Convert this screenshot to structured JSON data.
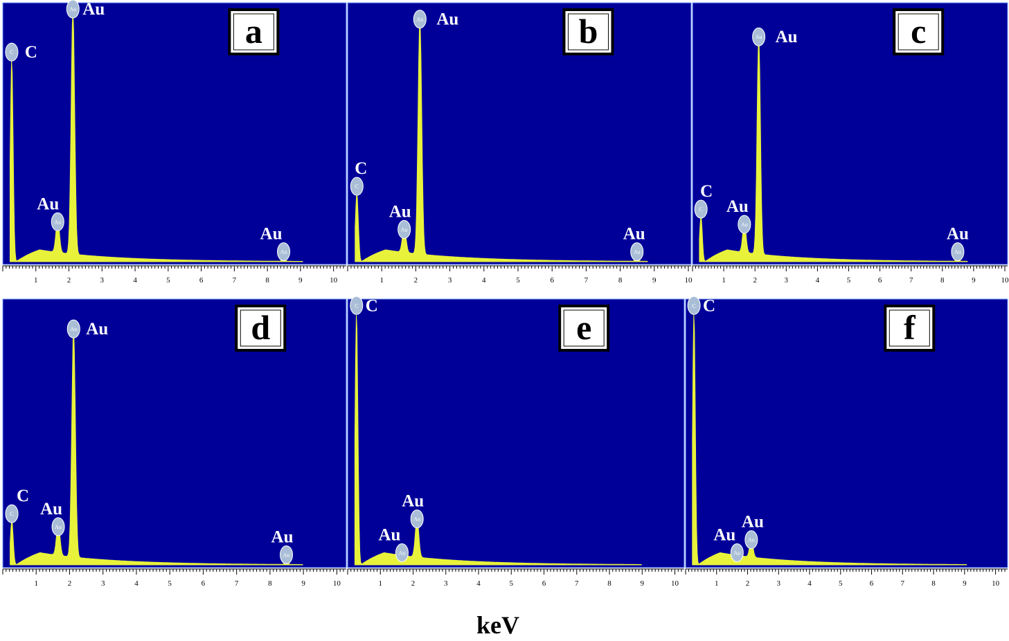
{
  "figure": {
    "xlabel": "keV",
    "colors": {
      "plot_bg": "#000099",
      "spectrum": "#e8f23a",
      "marker": "#a9bed6",
      "label_box": "#ffffff"
    }
  },
  "chart_data": [
    {
      "type": "area",
      "panel": "a",
      "xlim": [
        0,
        10.3
      ],
      "x_ticks": [
        1,
        2,
        3,
        4,
        5,
        6,
        7,
        8,
        9,
        10
      ],
      "peaks": [
        {
          "element": "C",
          "x": 0.27,
          "height": 0.8,
          "label": "C"
        },
        {
          "element": "Au",
          "x": 1.66,
          "height": 0.13,
          "label": "Au"
        },
        {
          "element": "Au",
          "x": 2.12,
          "height": 0.97,
          "label": "Au"
        },
        {
          "element": "Au",
          "x": 8.49,
          "height": 0.012,
          "label": "Au"
        }
      ]
    },
    {
      "type": "area",
      "panel": "b",
      "xlim": [
        0,
        10
      ],
      "x_ticks": [
        1,
        2,
        3,
        4,
        5,
        6,
        7,
        8,
        9,
        10
      ],
      "peaks": [
        {
          "element": "C",
          "x": 0.27,
          "height": 0.27,
          "label": "C"
        },
        {
          "element": "Au",
          "x": 1.66,
          "height": 0.1,
          "label": "Au"
        },
        {
          "element": "Au",
          "x": 2.12,
          "height": 0.93,
          "label": "Au"
        },
        {
          "element": "Au",
          "x": 8.49,
          "height": 0.012,
          "label": "Au"
        }
      ]
    },
    {
      "type": "area",
      "panel": "c",
      "xlim": [
        0,
        10
      ],
      "x_ticks": [
        1,
        2,
        3,
        4,
        5,
        6,
        7,
        8,
        9,
        10
      ],
      "peaks": [
        {
          "element": "C",
          "x": 0.27,
          "height": 0.18,
          "label": "C"
        },
        {
          "element": "Au",
          "x": 1.66,
          "height": 0.12,
          "label": "Au"
        },
        {
          "element": "Au",
          "x": 2.12,
          "height": 0.86,
          "label": "Au"
        },
        {
          "element": "Au",
          "x": 8.49,
          "height": 0.012,
          "label": "Au"
        }
      ]
    },
    {
      "type": "area",
      "panel": "d",
      "xlim": [
        0,
        10.2
      ],
      "x_ticks": [
        1,
        2,
        3,
        4,
        5,
        6,
        7,
        8,
        9,
        10
      ],
      "peaks": [
        {
          "element": "C",
          "x": 0.27,
          "height": 0.17,
          "label": "C"
        },
        {
          "element": "Au",
          "x": 1.66,
          "height": 0.12,
          "label": "Au"
        },
        {
          "element": "Au",
          "x": 2.12,
          "height": 0.88,
          "label": "Au"
        },
        {
          "element": "Au",
          "x": 8.49,
          "height": 0.012,
          "label": "Au"
        }
      ]
    },
    {
      "type": "area",
      "panel": "e",
      "xlim": [
        0,
        10.2
      ],
      "x_ticks": [
        1,
        2,
        3,
        4,
        5,
        6,
        7,
        8,
        9,
        10
      ],
      "peaks": [
        {
          "element": "C",
          "x": 0.27,
          "height": 0.97,
          "label": "C"
        },
        {
          "element": "Au",
          "x": 1.66,
          "height": 0.02,
          "label": "Au"
        },
        {
          "element": "Au",
          "x": 2.12,
          "height": 0.15,
          "label": "Au"
        }
      ]
    },
    {
      "type": "area",
      "panel": "f",
      "xlim": [
        0,
        10.3
      ],
      "x_ticks": [
        1,
        2,
        3,
        4,
        5,
        6,
        7,
        8,
        9,
        10
      ],
      "peaks": [
        {
          "element": "C",
          "x": 0.27,
          "height": 0.97,
          "label": "C"
        },
        {
          "element": "Au",
          "x": 1.66,
          "height": 0.02,
          "label": "Au"
        },
        {
          "element": "Au",
          "x": 2.12,
          "height": 0.07,
          "label": "Au"
        }
      ]
    }
  ]
}
